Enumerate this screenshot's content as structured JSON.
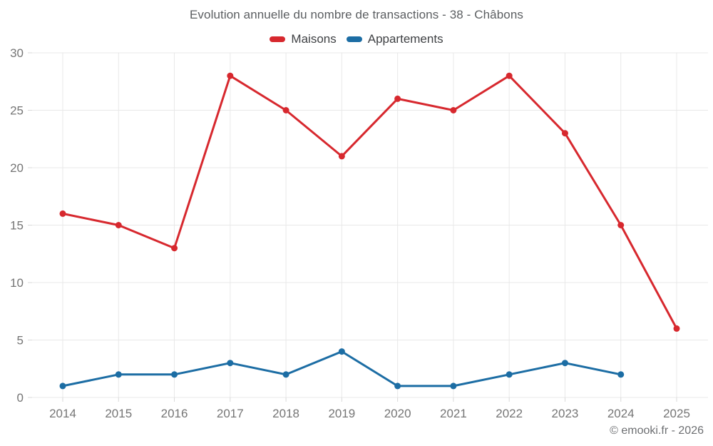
{
  "footer": {
    "attribution": "© emooki.fr - 2026"
  },
  "chart_data": {
    "type": "line",
    "title": "Evolution annuelle du nombre de transactions - 38 - Châbons",
    "categories": [
      "2014",
      "2015",
      "2016",
      "2017",
      "2018",
      "2019",
      "2020",
      "2021",
      "2022",
      "2023",
      "2024",
      "2025"
    ],
    "series": [
      {
        "name": "Maisons",
        "color": "#d7282e",
        "values": [
          16,
          15,
          13,
          28,
          25,
          21,
          26,
          25,
          28,
          23,
          15,
          6
        ]
      },
      {
        "name": "Appartements",
        "color": "#1c6da4",
        "values": [
          1,
          2,
          2,
          3,
          2,
          4,
          1,
          1,
          2,
          3,
          2,
          null
        ]
      }
    ],
    "xlabel": "",
    "ylabel": "",
    "ylim": [
      0,
      30
    ],
    "yticks": [
      0,
      5,
      10,
      15,
      20,
      25,
      30
    ],
    "grid": true,
    "legend_position": "top",
    "marker_radius": 4.5,
    "line_width": 3,
    "gridline_color": "#e8e8e8",
    "tick_color": "#d9d9d9",
    "tick_label_color": "#757575"
  }
}
